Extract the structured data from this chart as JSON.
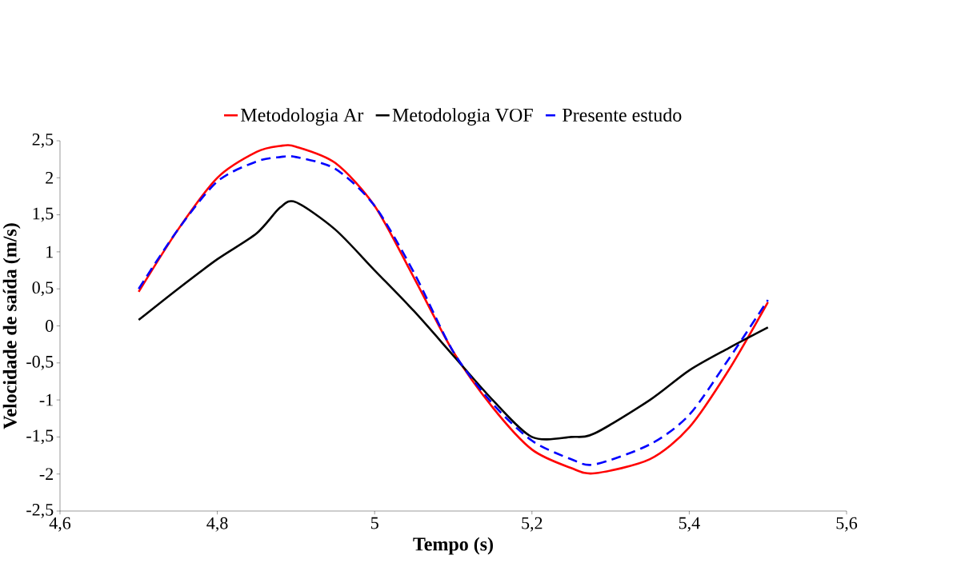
{
  "chart_data": {
    "type": "line",
    "xlabel": "Tempo (s)",
    "ylabel": "Velocidade de saída (m/s)",
    "xlim": [
      4.6,
      5.6
    ],
    "xticks": [
      {
        "value": 4.6,
        "label": "4,6"
      },
      {
        "value": 4.8,
        "label": "4,8"
      },
      {
        "value": 5,
        "label": "5"
      },
      {
        "value": 5.2,
        "label": "5,2"
      },
      {
        "value": 5.4,
        "label": "5,4"
      },
      {
        "value": 5.6,
        "label": "5,6"
      }
    ],
    "ylim": [
      -2.5,
      2.5
    ],
    "yticks": [
      {
        "value": -2.5,
        "label": "-2,5"
      },
      {
        "value": -2,
        "label": "-2"
      },
      {
        "value": -1.5,
        "label": "-1,5"
      },
      {
        "value": -1,
        "label": "-1"
      },
      {
        "value": -0.5,
        "label": "-0,5"
      },
      {
        "value": 0,
        "label": "0"
      },
      {
        "value": 0.5,
        "label": "0,5"
      },
      {
        "value": 1,
        "label": "1"
      },
      {
        "value": 1.5,
        "label": "1,5"
      },
      {
        "value": 2,
        "label": "2"
      },
      {
        "value": 2.5,
        "label": "2,5"
      }
    ],
    "x": [
      4.7,
      4.75,
      4.8,
      4.85,
      4.88,
      4.9,
      4.95,
      5.0,
      5.05,
      5.1,
      5.15,
      5.2,
      5.25,
      5.28,
      5.35,
      5.4,
      5.45,
      5.5
    ],
    "grid": false,
    "legend": "top",
    "marker": "none",
    "series": [
      {
        "name": "Metodologia Ar",
        "color": "#ff0000",
        "line_style": "solid",
        "values": [
          0.46,
          1.3,
          2.0,
          2.35,
          2.43,
          2.42,
          2.2,
          1.62,
          0.65,
          -0.35,
          -1.1,
          -1.67,
          -1.92,
          -1.99,
          -1.8,
          -1.37,
          -0.6,
          0.32
        ]
      },
      {
        "name": "Metodologia VOF",
        "color": "#000000",
        "line_style": "solid",
        "values": [
          0.08,
          0.5,
          0.9,
          1.25,
          1.6,
          1.67,
          1.3,
          0.75,
          0.2,
          -0.4,
          -1.0,
          -1.5,
          -1.5,
          -1.45,
          -1.0,
          -0.6,
          -0.3,
          -0.02
        ]
      },
      {
        "name": "Presente estudo",
        "color": "#0000ff",
        "line_style": "dashed",
        "values": [
          0.5,
          1.3,
          1.95,
          2.22,
          2.28,
          2.28,
          2.12,
          1.62,
          0.72,
          -0.35,
          -1.05,
          -1.55,
          -1.8,
          -1.87,
          -1.6,
          -1.2,
          -0.45,
          0.35
        ]
      }
    ]
  }
}
